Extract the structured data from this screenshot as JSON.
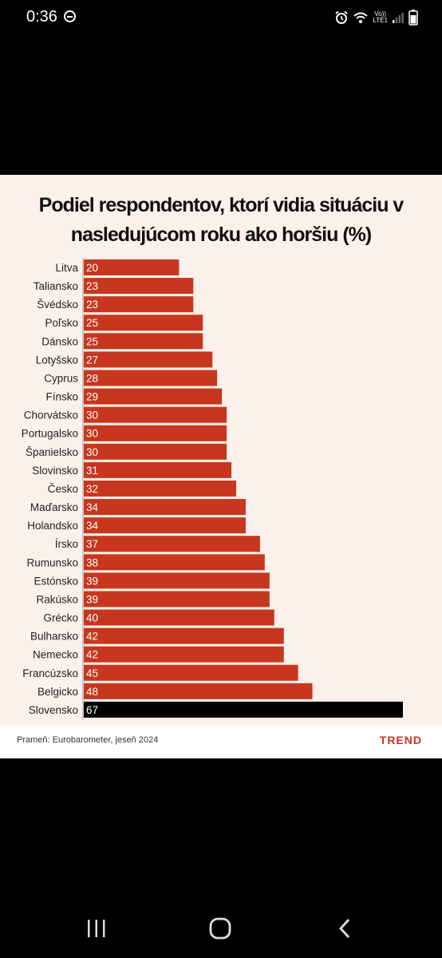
{
  "status_bar": {
    "time": "0:36",
    "network_label_top": "Vo))",
    "network_label_bottom": "LTE1"
  },
  "figure": {
    "title_line1": "Podiel respondentov, ktorí vidia situáciu v",
    "title_line2": "nasledujúcom roku ako horšiu (%)",
    "source": "Prameň: Eurobarometer, jeseň 2024",
    "brand": "TREND"
  },
  "colors": {
    "bar": "#c7371f",
    "highlight_bar": "#000000",
    "background": "#fbf1ea"
  },
  "chart_data": {
    "type": "bar",
    "orientation": "horizontal",
    "title": "Podiel respondentov, ktorí vidia situáciu v nasledujúcom roku ako horšiu (%)",
    "categories": [
      "Litva",
      "Taliansko",
      "Švédsko",
      "Poľsko",
      "Dánsko",
      "Lotyšsko",
      "Cyprus",
      "Fínsko",
      "Chorvátsko",
      "Portugalsko",
      "Španielsko",
      "Slovinsko",
      "Česko",
      "Maďarsko",
      "Holandsko",
      "Írsko",
      "Rumunsko",
      "Estónsko",
      "Rakúsko",
      "Grécko",
      "Bulharsko",
      "Nemecko",
      "Francúzsko",
      "Belgicko",
      "Slovensko"
    ],
    "values": [
      20,
      23,
      23,
      25,
      25,
      27,
      28,
      29,
      30,
      30,
      30,
      31,
      32,
      34,
      34,
      37,
      38,
      39,
      39,
      40,
      42,
      42,
      45,
      48,
      67
    ],
    "highlight": "Slovensko",
    "xlim": [
      0,
      67
    ],
    "grid": false,
    "legend": "none"
  },
  "nav": {
    "recents": "recents-icon",
    "home": "home-icon",
    "back": "back-icon"
  }
}
